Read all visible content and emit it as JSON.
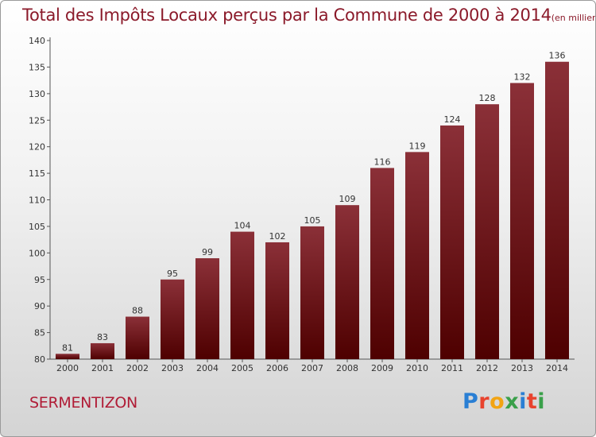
{
  "header": {
    "title": "Total des Impôts Locaux perçus par la Commune de 2000 à 2014",
    "unit": "(en milliers d'€)"
  },
  "footer": {
    "commune": "SERMENTIZON",
    "logo": "Proxiti"
  },
  "colors": {
    "bar_light": "#8b3038",
    "bar_dark": "#4e0000",
    "title": "#8b1a2a"
  },
  "chart_data": {
    "type": "bar",
    "title": "Total des Impôts Locaux perçus par la Commune de 2000 à 2014",
    "ylabel": "en milliers d'€",
    "xlabel": "",
    "categories": [
      "2000",
      "2001",
      "2002",
      "2003",
      "2004",
      "2005",
      "2006",
      "2007",
      "2008",
      "2009",
      "2010",
      "2011",
      "2012",
      "2013",
      "2014"
    ],
    "values": [
      81,
      83,
      88,
      95,
      99,
      104,
      102,
      105,
      109,
      116,
      119,
      124,
      128,
      132,
      136
    ],
    "ylim": [
      80,
      140
    ],
    "yticks": [
      80,
      85,
      90,
      95,
      100,
      105,
      110,
      115,
      120,
      125,
      130,
      135,
      140
    ],
    "grid": false,
    "legend": "none"
  }
}
